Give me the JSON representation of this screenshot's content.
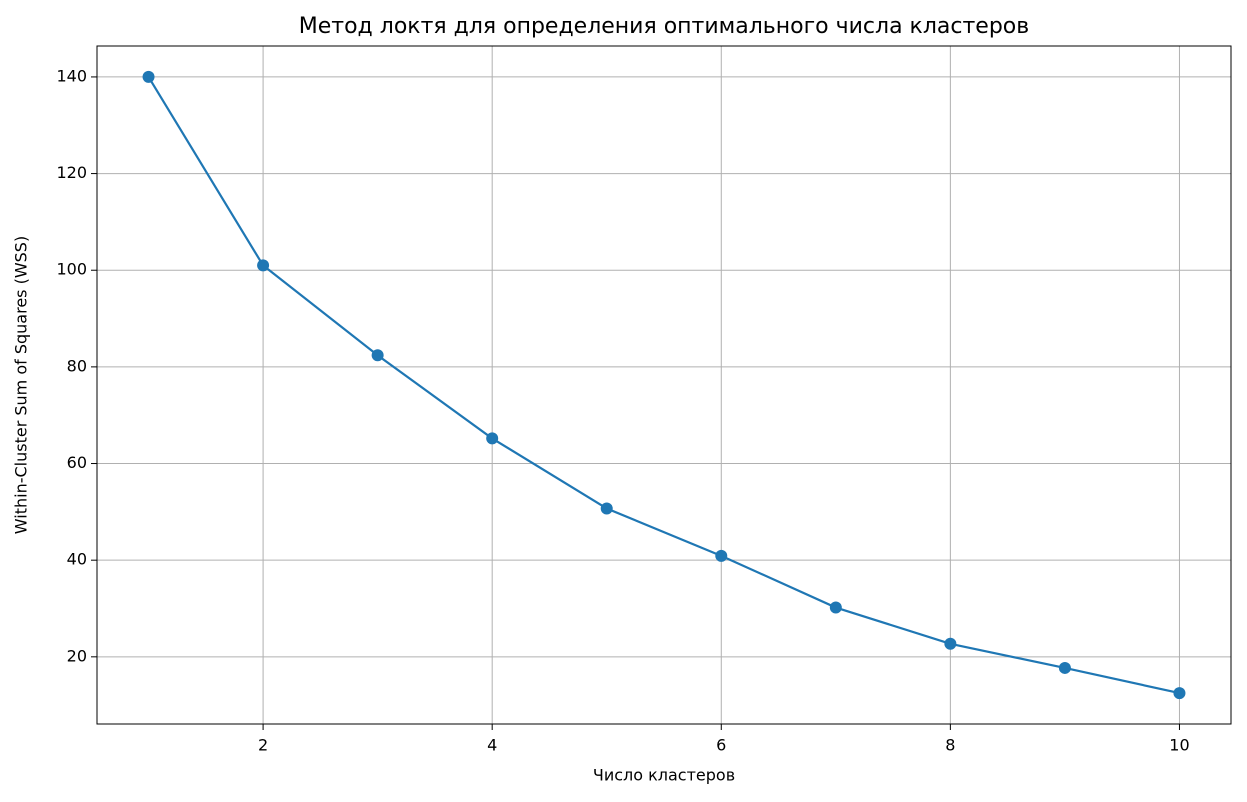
{
  "chart_data": {
    "type": "line",
    "title": "Метод локтя для определения оптимального числа кластеров",
    "x_label": "Число кластеров",
    "y_label": "Within-Cluster Sum of Squares (WSS)",
    "x": [
      1,
      2,
      3,
      4,
      5,
      6,
      7,
      8,
      9,
      10
    ],
    "series": [
      {
        "name": "WSS",
        "color": "#1f77b4",
        "values": [
          140,
          101,
          82.4,
          65.2,
          50.7,
          40.9,
          30.2,
          22.7,
          17.7,
          12.5
        ]
      }
    ],
    "xlim": [
      0.55,
      10.45
    ],
    "xticks": [
      2,
      4,
      6,
      8,
      10
    ],
    "ylim": [
      6.1,
      146.4
    ],
    "yticks": [
      20,
      40,
      60,
      80,
      100,
      120,
      140
    ],
    "grid": true,
    "marker": true
  }
}
